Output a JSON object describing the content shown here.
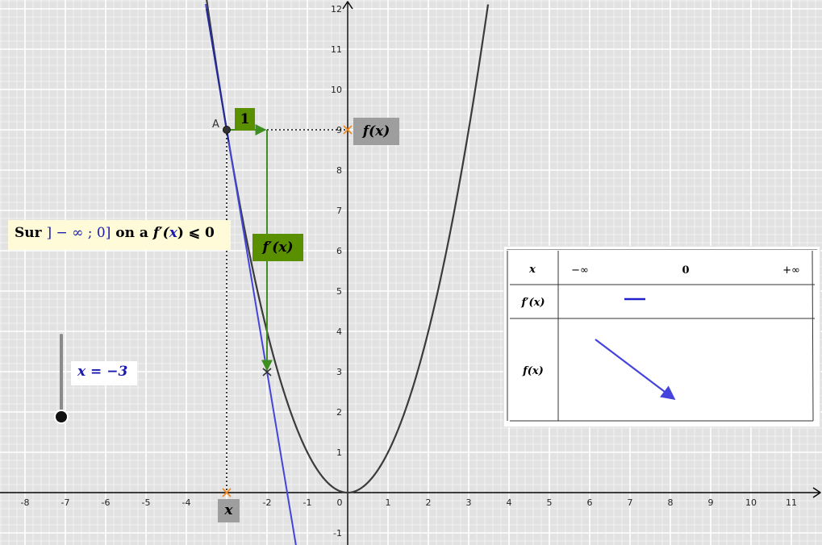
{
  "graph": {
    "x_ticks": [
      "-8",
      "-7",
      "-6",
      "-5",
      "-4",
      "-3",
      "-2",
      "-1",
      "0",
      "1",
      "2",
      "3",
      "4",
      "5",
      "6",
      "7",
      "8",
      "9",
      "10",
      "11"
    ],
    "y_ticks": [
      "-1",
      "1",
      "2",
      "3",
      "4",
      "5",
      "6",
      "7",
      "8",
      "9",
      "10",
      "11",
      "12"
    ],
    "point_a_label": "A",
    "step_label": "1",
    "colors": {
      "curve": "#3b3b3b",
      "tangent": "#4444dd",
      "step": "#3e8f1f",
      "marker": "#f08a24"
    }
  },
  "labels": {
    "fx": "f(x)",
    "fprime": "f′(x)",
    "x_axis_var": "x"
  },
  "sign_statement": {
    "prefix": "Sur",
    "interval": "] − ∞ ; 0]",
    "middle": "on a",
    "expr_pre": "f′(",
    "expr_var": "x",
    "expr_post": ") ⩽ 0"
  },
  "slider": {
    "label": "x = −3",
    "value": -3
  },
  "variation_table": {
    "row_x": "x",
    "row_fprime": "f′(x)",
    "row_f": "f(x)",
    "x_values": [
      "−∞",
      "0",
      "+∞"
    ]
  }
}
